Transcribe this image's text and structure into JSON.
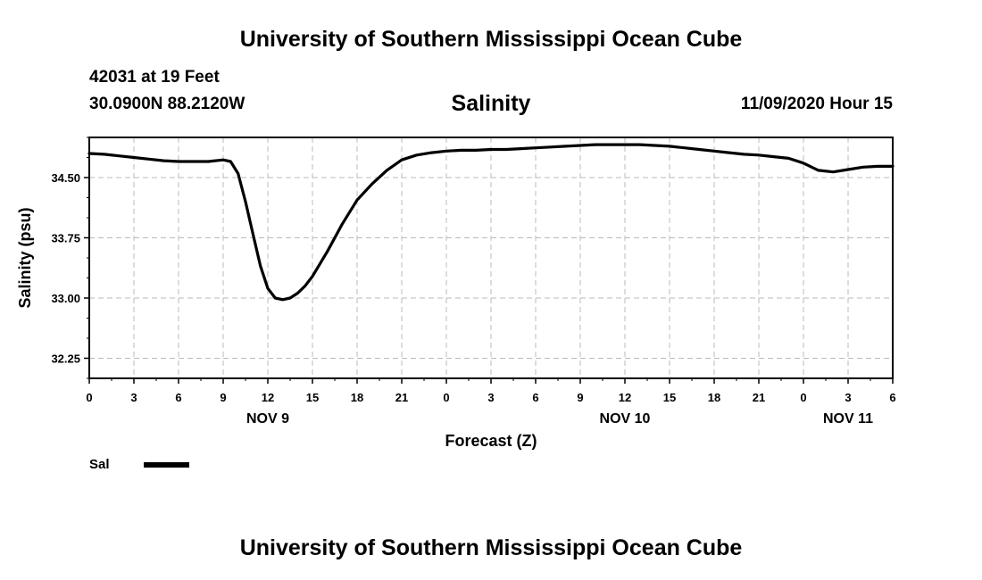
{
  "page": {
    "header_title": "University of Southern Mississippi Ocean Cube",
    "footer_title": "University of Southern Mississippi Ocean Cube",
    "station": "42031 at 19 Feet",
    "coordinates": "30.0900N 88.2120W",
    "timestamp": "11/09/2020 Hour 15"
  },
  "chart_data": {
    "type": "line",
    "title": "Salinity",
    "xlabel": "Forecast (Z)",
    "ylabel": "Salinity (psu)",
    "x_unit": "hours since NOV 9 00Z",
    "xlim": [
      0,
      54
    ],
    "ylim": [
      32.0,
      35.0
    ],
    "grid": true,
    "line_color": "#000000",
    "grid_color": "#bbbbbb",
    "y_ticks": [
      32.25,
      33.0,
      33.75,
      34.5
    ],
    "y_tick_labels": [
      "32.25",
      "33.00",
      "33.75",
      "34.50"
    ],
    "x_ticks": [
      0,
      3,
      6,
      9,
      12,
      15,
      18,
      21,
      24,
      27,
      30,
      33,
      36,
      39,
      42,
      45,
      48,
      51,
      54
    ],
    "x_tick_labels": [
      "0",
      "3",
      "6",
      "9",
      "12",
      "15",
      "18",
      "21",
      "0",
      "3",
      "6",
      "9",
      "12",
      "15",
      "18",
      "21",
      "0",
      "3",
      "6"
    ],
    "day_labels": [
      {
        "x": 12,
        "label": "NOV 9"
      },
      {
        "x": 36,
        "label": "NOV 10"
      },
      {
        "x": 51,
        "label": "NOV 11"
      }
    ],
    "legend": {
      "position": "bottom-left",
      "entries": [
        {
          "label": "Sal",
          "color": "#000000"
        }
      ]
    },
    "series": [
      {
        "name": "Sal",
        "x": [
          0,
          1,
          2,
          3,
          4,
          5,
          6,
          7,
          8,
          9,
          9.5,
          10,
          10.5,
          11,
          11.5,
          12,
          12.5,
          13,
          13.5,
          14,
          14.5,
          15,
          16,
          17,
          18,
          19,
          20,
          21,
          22,
          23,
          24,
          25,
          26,
          27,
          28,
          29,
          30,
          31,
          32,
          33,
          34,
          35,
          36,
          37,
          38,
          39,
          40,
          41,
          42,
          43,
          44,
          45,
          46,
          47,
          48,
          49,
          50,
          51,
          52,
          53,
          54
        ],
        "values": [
          34.8,
          34.79,
          34.77,
          34.75,
          34.73,
          34.71,
          34.7,
          34.7,
          34.7,
          34.72,
          34.7,
          34.55,
          34.2,
          33.8,
          33.4,
          33.12,
          33.0,
          32.98,
          33.0,
          33.06,
          33.15,
          33.27,
          33.58,
          33.92,
          34.22,
          34.42,
          34.59,
          34.72,
          34.78,
          34.81,
          34.83,
          34.84,
          34.84,
          34.85,
          34.85,
          34.86,
          34.87,
          34.88,
          34.89,
          34.9,
          34.91,
          34.91,
          34.91,
          34.91,
          34.9,
          34.89,
          34.87,
          34.85,
          34.83,
          34.81,
          34.79,
          34.78,
          34.76,
          34.74,
          34.68,
          34.59,
          34.57,
          34.6,
          34.63,
          34.64,
          34.64
        ]
      }
    ]
  }
}
